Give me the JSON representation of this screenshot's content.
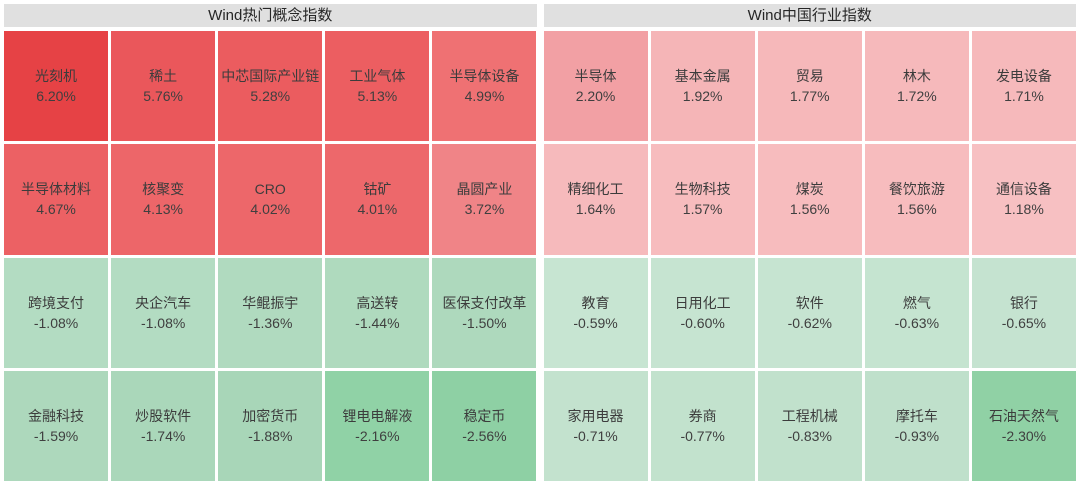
{
  "chart_data": [
    {
      "type": "heatmap",
      "title": "Wind热门概念指数",
      "value_unit": "%",
      "rows": [
        [
          {
            "label": "光刻机",
            "value": 6.2,
            "display": "6.20%",
            "color": "#e64245"
          },
          {
            "label": "稀土",
            "value": 5.76,
            "display": "5.76%",
            "color": "#ea575b"
          },
          {
            "label": "中芯国际产业链",
            "value": 5.28,
            "display": "5.28%",
            "color": "#eb5c5f"
          },
          {
            "label": "工业气体",
            "value": 5.13,
            "display": "5.13%",
            "color": "#ec5e61"
          },
          {
            "label": "半导体设备",
            "value": 4.99,
            "display": "4.99%",
            "color": "#ef7173"
          }
        ],
        [
          {
            "label": "半导体材料",
            "value": 4.67,
            "display": "4.67%",
            "color": "#ec6164"
          },
          {
            "label": "核聚变",
            "value": 4.13,
            "display": "4.13%",
            "color": "#ed6669"
          },
          {
            "label": "CRO",
            "value": 4.02,
            "display": "4.02%",
            "color": "#ed676a"
          },
          {
            "label": "钴矿",
            "value": 4.01,
            "display": "4.01%",
            "color": "#ed686b"
          },
          {
            "label": "晶圆产业",
            "value": 3.72,
            "display": "3.72%",
            "color": "#f08487"
          }
        ],
        [
          {
            "label": "跨境支付",
            "value": -1.08,
            "display": "-1.08%",
            "color": "#b3dcc2"
          },
          {
            "label": "央企汽车",
            "value": -1.08,
            "display": "-1.08%",
            "color": "#b3dcc2"
          },
          {
            "label": "华鲲振宇",
            "value": -1.36,
            "display": "-1.36%",
            "color": "#b0dabf"
          },
          {
            "label": "高送转",
            "value": -1.44,
            "display": "-1.44%",
            "color": "#afdabe"
          },
          {
            "label": "医保支付改革",
            "value": -1.5,
            "display": "-1.50%",
            "color": "#aed9bd"
          }
        ],
        [
          {
            "label": "金融科技",
            "value": -1.59,
            "display": "-1.59%",
            "color": "#add8bc"
          },
          {
            "label": "炒股软件",
            "value": -1.74,
            "display": "-1.74%",
            "color": "#aad7ba"
          },
          {
            "label": "加密货币",
            "value": -1.88,
            "display": "-1.88%",
            "color": "#a8d6b8"
          },
          {
            "label": "锂电电解液",
            "value": -2.16,
            "display": "-2.16%",
            "color": "#90d2a6"
          },
          {
            "label": "稳定币",
            "value": -2.56,
            "display": "-2.56%",
            "color": "#8ed0a4"
          }
        ]
      ]
    },
    {
      "type": "heatmap",
      "title": "Wind中国行业指数",
      "value_unit": "%",
      "rows": [
        [
          {
            "label": "半导体",
            "value": 2.2,
            "display": "2.20%",
            "color": "#f2a0a4"
          },
          {
            "label": "基本金属",
            "value": 1.92,
            "display": "1.92%",
            "color": "#f5b5b7"
          },
          {
            "label": "贸易",
            "value": 1.77,
            "display": "1.77%",
            "color": "#f6b8ba"
          },
          {
            "label": "林木",
            "value": 1.72,
            "display": "1.72%",
            "color": "#f6b9bb"
          },
          {
            "label": "发电设备",
            "value": 1.71,
            "display": "1.71%",
            "color": "#f6b9bb"
          }
        ],
        [
          {
            "label": "精细化工",
            "value": 1.64,
            "display": "1.64%",
            "color": "#f6babc"
          },
          {
            "label": "生物科技",
            "value": 1.57,
            "display": "1.57%",
            "color": "#f7bcbe"
          },
          {
            "label": "煤炭",
            "value": 1.56,
            "display": "1.56%",
            "color": "#f7bcbe"
          },
          {
            "label": "餐饮旅游",
            "value": 1.56,
            "display": "1.56%",
            "color": "#f7bcbe"
          },
          {
            "label": "通信设备",
            "value": 1.18,
            "display": "1.18%",
            "color": "#f7c0c2"
          }
        ],
        [
          {
            "label": "教育",
            "value": -0.59,
            "display": "-0.59%",
            "color": "#c7e5d2"
          },
          {
            "label": "日用化工",
            "value": -0.6,
            "display": "-0.60%",
            "color": "#c6e4d1"
          },
          {
            "label": "软件",
            "value": -0.62,
            "display": "-0.62%",
            "color": "#c6e4d1"
          },
          {
            "label": "燃气",
            "value": -0.63,
            "display": "-0.63%",
            "color": "#c5e4d0"
          },
          {
            "label": "银行",
            "value": -0.65,
            "display": "-0.65%",
            "color": "#c5e3d0"
          }
        ],
        [
          {
            "label": "家用电器",
            "value": -0.71,
            "display": "-0.71%",
            "color": "#c3e2ce"
          },
          {
            "label": "券商",
            "value": -0.77,
            "display": "-0.77%",
            "color": "#c2e2cd"
          },
          {
            "label": "工程机械",
            "value": -0.83,
            "display": "-0.83%",
            "color": "#c1e1cc"
          },
          {
            "label": "摩托车",
            "value": -0.93,
            "display": "-0.93%",
            "color": "#bfe0cb"
          },
          {
            "label": "石油天然气",
            "value": -2.3,
            "display": "-2.30%",
            "color": "#90d1a5"
          }
        ]
      ]
    }
  ],
  "colors": {
    "header_background": "#e0e0e0",
    "gap": "#ffffff",
    "text": "#3c3c3c"
  }
}
